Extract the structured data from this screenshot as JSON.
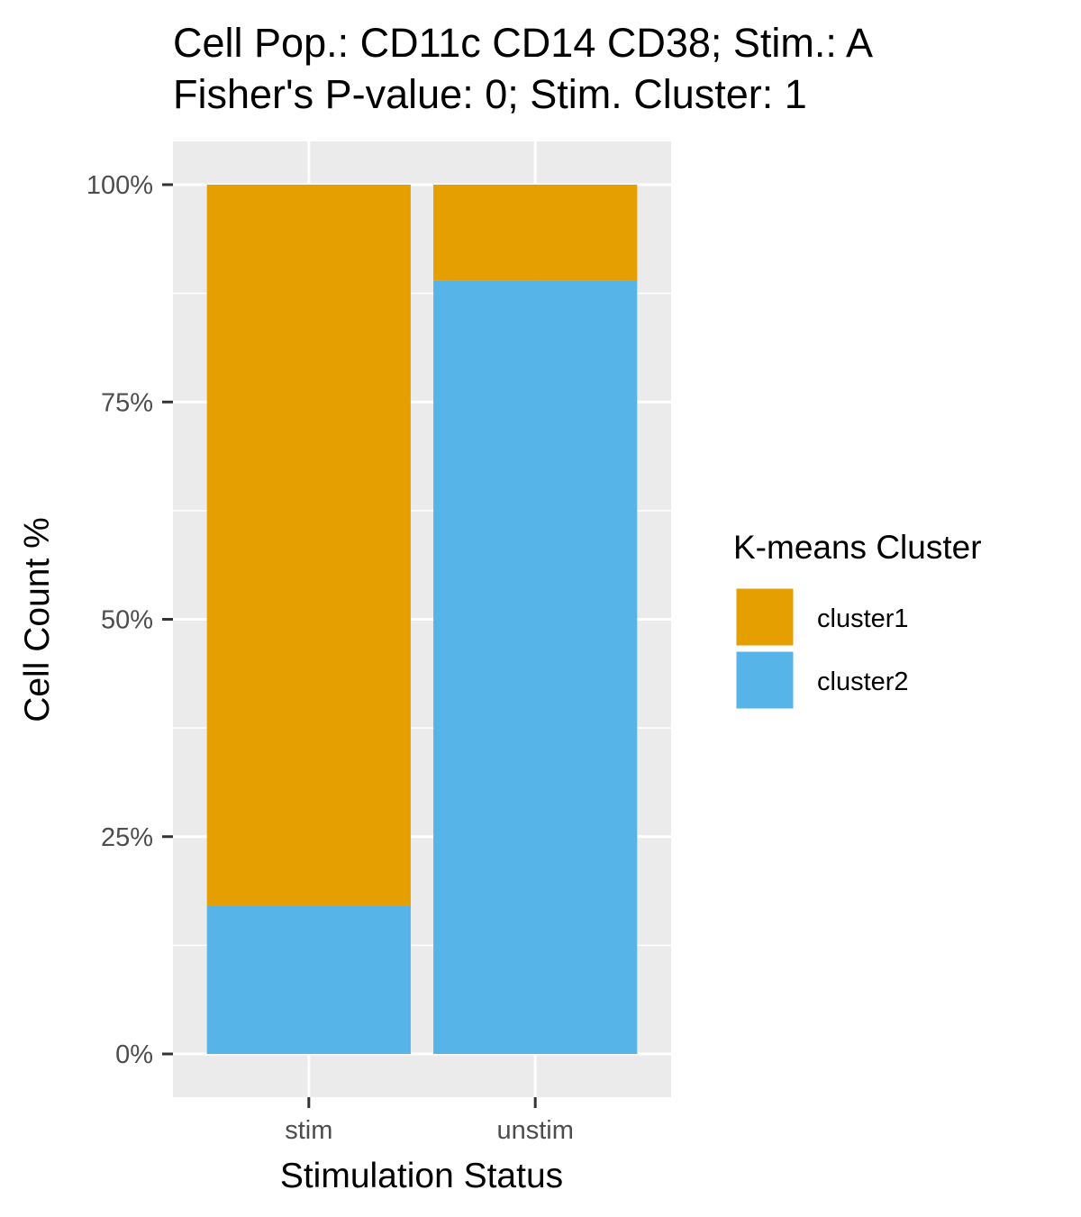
{
  "chart_data": {
    "type": "bar",
    "stacked": true,
    "title": "Cell Pop.: CD11c CD14 CD38; Stim.: A",
    "subtitle": "Fisher's P-value: 0; Stim. Cluster: 1",
    "xlabel": "Stimulation Status",
    "ylabel": "Cell Count %",
    "categories": [
      "stim",
      "unstim"
    ],
    "series": [
      {
        "name": "cluster1",
        "color": "#E69F00",
        "values": [
          83,
          11
        ]
      },
      {
        "name": "cluster2",
        "color": "#56B4E9",
        "values": [
          17,
          89
        ]
      }
    ],
    "ylim": [
      0,
      100
    ],
    "yticks": [
      0,
      25,
      50,
      75,
      100
    ],
    "ytick_labels": [
      "0%",
      "25%",
      "50%",
      "75%",
      "100%"
    ],
    "legend": {
      "title": "K-means Cluster",
      "position": "right"
    },
    "grid": true,
    "panel_color": "#EBEBEB"
  }
}
